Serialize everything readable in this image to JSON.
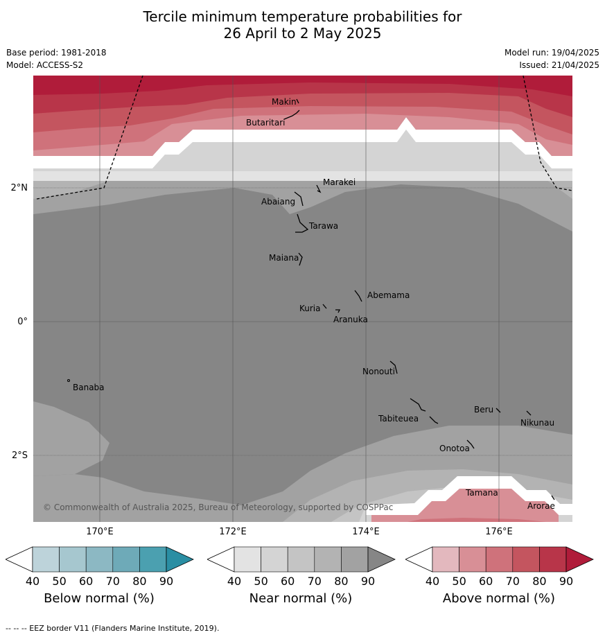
{
  "title_line1": "Tercile minimum temperature probabilities for",
  "title_line2": "26 April to 2 May 2025",
  "base_period": "Base period: 1981-2018",
  "model": "Model: ACCESS-S2",
  "model_run": "Model run: 19/04/2025",
  "issued": "Issued: 21/04/2025",
  "lat_labels": [
    "2°N",
    "0°",
    "2°S"
  ],
  "lon_labels": [
    "170°E",
    "172°E",
    "174°E",
    "176°E"
  ],
  "copyright": "© Commonwealth of Australia 2025, Bureau of Meteorology, supported by COSPPac",
  "islands": [
    "Makin",
    "Butaritari",
    "Marakei",
    "Abaiang",
    "Tarawa",
    "Maiana",
    "Abemama",
    "Kuria",
    "Aranuka",
    "Nonouti",
    "Banaba",
    "Beru",
    "Tabiteuea",
    "Nikunau",
    "Onotoa",
    "Tamana",
    "Arorae"
  ],
  "colorbars": [
    {
      "title": "Below normal (%)",
      "ticks": [
        "40",
        "50",
        "60",
        "70",
        "80",
        "90"
      ],
      "colors": [
        "#ffffff",
        "#bdd3da",
        "#a6c7cf",
        "#8cb8c3",
        "#6eaab8",
        "#4ba0b0",
        "#2a8ea3"
      ]
    },
    {
      "title": "Near normal (%)",
      "ticks": [
        "40",
        "50",
        "60",
        "70",
        "80",
        "90"
      ],
      "colors": [
        "#ffffff",
        "#e3e3e3",
        "#d4d4d4",
        "#c4c4c4",
        "#b3b3b3",
        "#a2a2a2",
        "#868686"
      ]
    },
    {
      "title": "Above normal (%)",
      "ticks": [
        "40",
        "50",
        "60",
        "70",
        "80",
        "90"
      ],
      "colors": [
        "#ffffff",
        "#e3b8be",
        "#d88f96",
        "#cf727b",
        "#c4555f",
        "#b83549",
        "#b01c3a"
      ]
    }
  ],
  "footer": "--  --  -- EEZ border V11 (Flanders Marine Institute, 2019)."
}
